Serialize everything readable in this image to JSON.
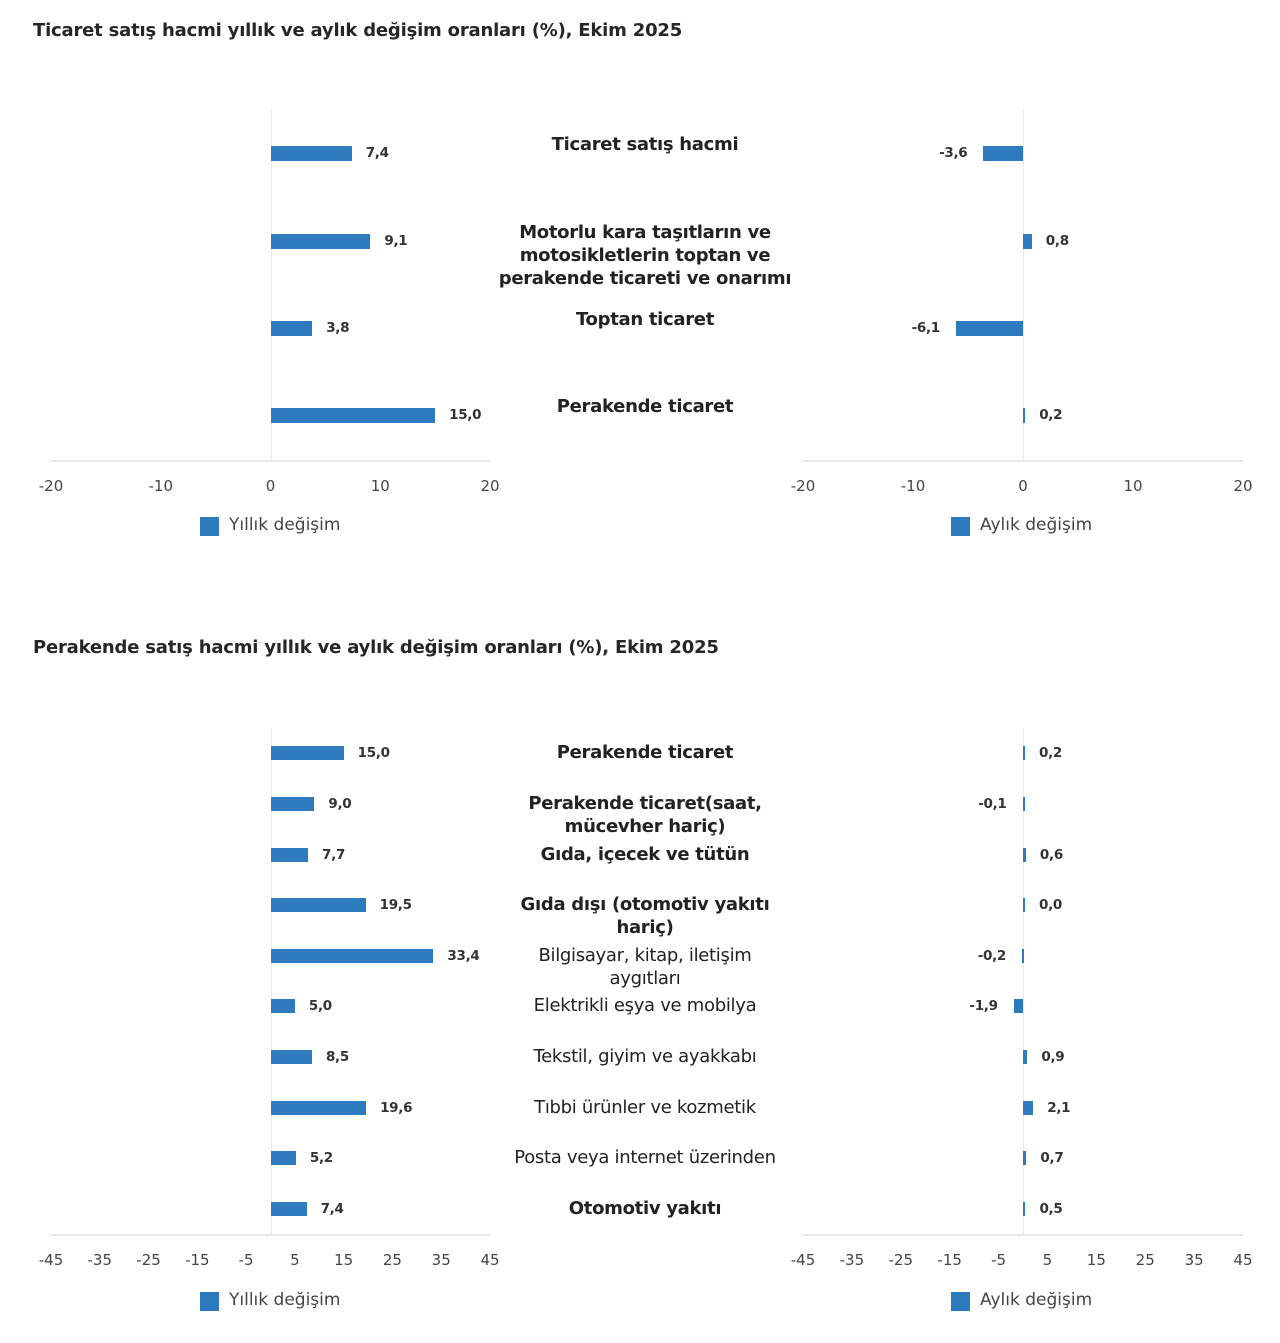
{
  "chart_data": [
    {
      "type": "bar",
      "title": "Ticaret satış hacmi yıllık ve aylık değişim oranları (%), Ekim 2025",
      "categories": [
        "Ticaret satış hacmi",
        "Motorlu kara taşıtların ve motosikletlerin toptan ve perakende ticareti ve onarımı",
        "Toptan ticaret",
        "Perakende ticaret"
      ],
      "category_lines": [
        [
          "Ticaret satış hacmi"
        ],
        [
          "Motorlu kara taşıtların ve",
          "motosikletlerin toptan ve",
          "perakende ticareti ve onarımı"
        ],
        [
          "Toptan ticaret"
        ],
        [
          "Perakende ticaret"
        ]
      ],
      "category_bold": [
        true,
        true,
        true,
        true
      ],
      "series": [
        {
          "name": "Yıllık değişim",
          "values": [
            7.4,
            9.1,
            3.8,
            15.0
          ],
          "labels": [
            "7,4",
            "9,1",
            "3,8",
            "15,0"
          ]
        },
        {
          "name": "Aylık değişim",
          "values": [
            -3.6,
            0.8,
            -6.1,
            0.2
          ],
          "labels": [
            "-3,6",
            "0,8",
            "-6,1",
            "0,2"
          ]
        }
      ],
      "xlim": [
        -20,
        20
      ],
      "xticks": [
        "-20",
        "-10",
        "0",
        "10",
        "20"
      ],
      "xtick_values": [
        -20,
        -10,
        0,
        10,
        20
      ],
      "legend_position": "bottom",
      "color": "#2e7abf"
    },
    {
      "type": "bar",
      "title": "Perakende satış hacmi yıllık ve aylık değişim oranları (%), Ekim 2025",
      "categories": [
        "Perakende ticaret",
        "Perakende ticaret(saat, mücevher hariç)",
        "Gıda, içecek ve tütün",
        "Gıda dışı (otomotiv yakıtı hariç)",
        "Bilgisayar, kitap, iletişim aygıtları",
        "Elektrikli eşya ve mobilya",
        "Tekstil, giyim ve ayakkabı",
        "Tıbbi ürünler ve kozmetik",
        "Posta veya internet üzerinden",
        "Otomotiv yakıtı"
      ],
      "category_lines": [
        [
          "Perakende ticaret"
        ],
        [
          "Perakende ticaret(saat,",
          "mücevher hariç)"
        ],
        [
          "Gıda, içecek ve tütün"
        ],
        [
          "Gıda dışı (otomotiv yakıtı",
          "hariç)"
        ],
        [
          "Bilgisayar, kitap, iletişim",
          "aygıtları"
        ],
        [
          "Elektrikli eşya ve mobilya"
        ],
        [
          "Tekstil, giyim ve ayakkabı"
        ],
        [
          "Tıbbi ürünler ve kozmetik"
        ],
        [
          "Posta veya internet üzerinden"
        ],
        [
          "Otomotiv yakıtı"
        ]
      ],
      "category_bold": [
        true,
        true,
        true,
        true,
        false,
        false,
        false,
        false,
        false,
        true
      ],
      "series": [
        {
          "name": "Yıllık değişim",
          "values": [
            15.0,
            9.0,
            7.7,
            19.5,
            33.4,
            5.0,
            8.5,
            19.6,
            5.2,
            7.4
          ],
          "labels": [
            "15,0",
            "9,0",
            "7,7",
            "19,5",
            "33,4",
            "5,0",
            "8,5",
            "19,6",
            "5,2",
            "7,4"
          ]
        },
        {
          "name": "Aylık değişim",
          "values": [
            0.2,
            -0.1,
            0.6,
            0.0,
            -0.2,
            -1.9,
            0.9,
            2.1,
            0.7,
            0.5
          ],
          "labels": [
            "0,2",
            "-0,1",
            "0,6",
            "0,0",
            "-0,2",
            "-1,9",
            "0,9",
            "2,1",
            "0,7",
            "0,5"
          ]
        }
      ],
      "xlim": [
        -45,
        45
      ],
      "xticks": [
        "-45",
        "-35",
        "-25",
        "-15",
        "-5",
        "5",
        "15",
        "25",
        "35",
        "45"
      ],
      "xtick_values": [
        -45,
        -35,
        -25,
        -15,
        -5,
        5,
        15,
        25,
        35,
        45
      ],
      "legend_position": "bottom",
      "color": "#2e7abf"
    }
  ]
}
